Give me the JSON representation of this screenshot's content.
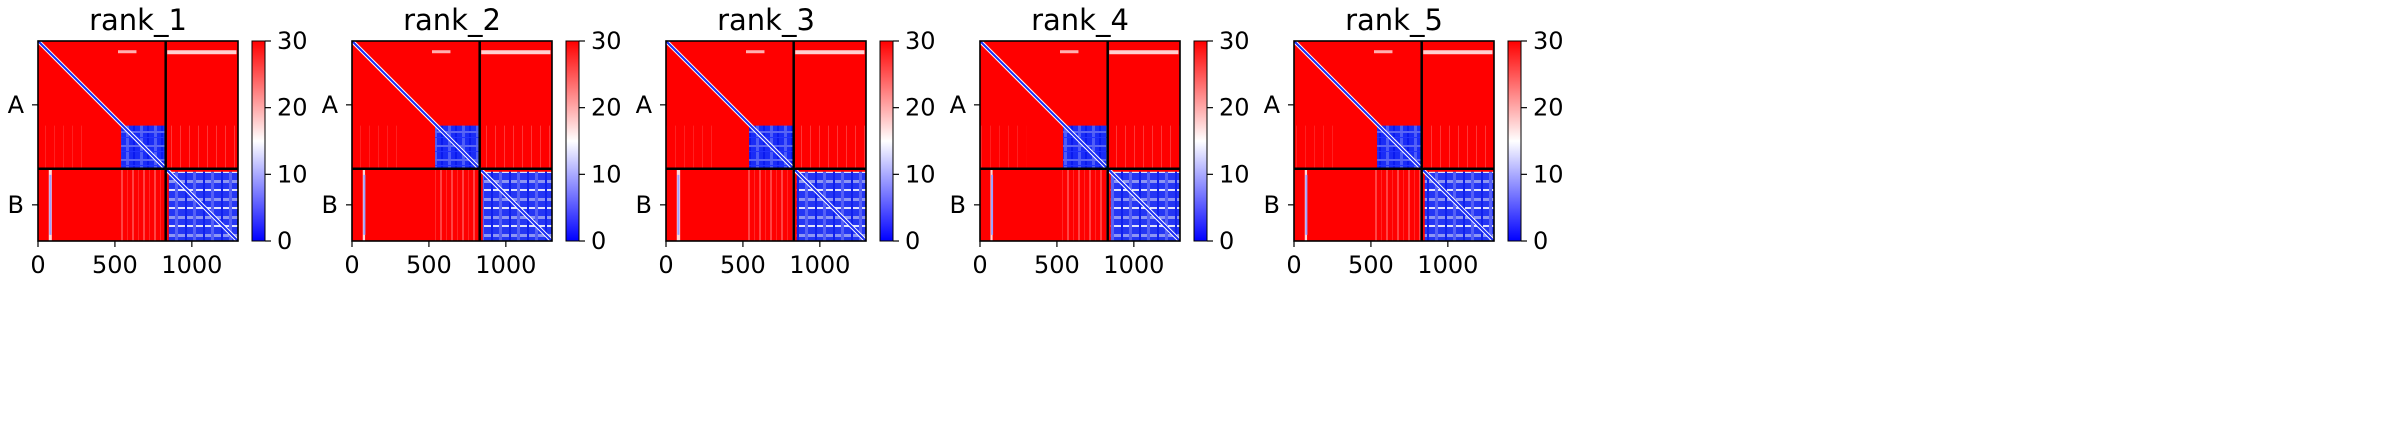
{
  "chart_data": {
    "type": "heatmap",
    "colormap": [
      "#0000ff",
      "#ffffff",
      "#ff0000"
    ],
    "clim": [
      0,
      30
    ],
    "colorbar_ticks": [
      0,
      10,
      20,
      30
    ],
    "xlim": [
      0,
      1300
    ],
    "x_ticks": [
      0,
      500,
      1000
    ],
    "chain_boundary": 830,
    "chain_labels": [
      "A",
      "B"
    ],
    "panels": [
      {
        "title": "rank_1",
        "b_band": [
          70,
          90
        ]
      },
      {
        "title": "rank_2",
        "b_band": [
          70,
          85
        ]
      },
      {
        "title": "rank_3",
        "b_band": [
          70,
          92
        ]
      },
      {
        "title": "rank_4",
        "b_band": [
          68,
          82
        ]
      },
      {
        "title": "rank_5",
        "b_band": [
          70,
          85
        ]
      }
    ]
  }
}
